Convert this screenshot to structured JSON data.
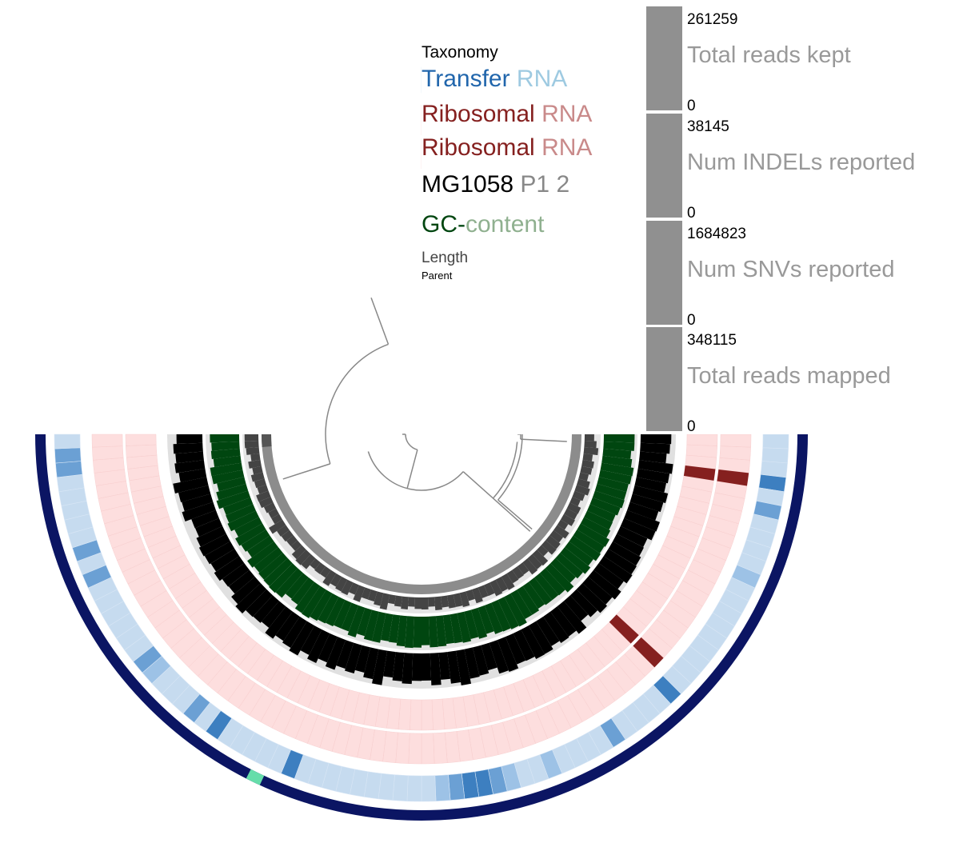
{
  "chart_data": {
    "type": "circular-phylogram",
    "layers": [
      {
        "label": "Taxonomy",
        "label_parts": [
          "Taxonomy"
        ],
        "color": "#0B1563",
        "highlight_color": "#66DDAA",
        "highlight_bins": [
          91
        ]
      },
      {
        "label": "Transfer RNA",
        "label_parts": [
          "Transfer",
          "RNA"
        ],
        "color": "#2166AC",
        "base_color": "#C6DBEF",
        "values": [
          0,
          0,
          0,
          0,
          0,
          0,
          0,
          0,
          0,
          0,
          0,
          0,
          0,
          0,
          0,
          0,
          0,
          0,
          0,
          0,
          0,
          0,
          0,
          0,
          0,
          0,
          0,
          0,
          0,
          0,
          0,
          0,
          0,
          0,
          0,
          0,
          0,
          0,
          0,
          0,
          0,
          0,
          0,
          0,
          0,
          0,
          0,
          0,
          0,
          0,
          0,
          0,
          0,
          0,
          0,
          0,
          0,
          0,
          0,
          0,
          0,
          0,
          0,
          0,
          0,
          0,
          0,
          0,
          0,
          0,
          0,
          0,
          0,
          0,
          0,
          0,
          0,
          0,
          0,
          0,
          0,
          0,
          0,
          0,
          0,
          0,
          0,
          0,
          0,
          0,
          0,
          0,
          0,
          0,
          0,
          0,
          0,
          0,
          0,
          0,
          0,
          0,
          0,
          0,
          0,
          0,
          0,
          0,
          0,
          0,
          0,
          0,
          0,
          0,
          0,
          0,
          0,
          0,
          0,
          0,
          0,
          0,
          0,
          0
        ]
      },
      {
        "label": "Ribosomal RNA",
        "label_parts": [
          "Ribosomal",
          "RNA"
        ],
        "color": "#7F1D1D",
        "base_color": "#FDDEDE"
      },
      {
        "label": "Ribosomal RNA",
        "label_parts": [
          "Ribosomal",
          "RNA"
        ],
        "color": "#7F1D1D",
        "base_color": "#FDDEDE"
      },
      {
        "label": "MG1058 P1 2",
        "label_parts": [
          "MG1058",
          "P1 2"
        ],
        "color": "#000000"
      },
      {
        "label": "GC-content",
        "label_parts": [
          "GC-",
          "content"
        ],
        "color": "#004610"
      },
      {
        "label": "Length",
        "label_parts": [
          "Length"
        ],
        "color": "#444444"
      },
      {
        "label": "Parent",
        "label_parts": [
          "Parent"
        ],
        "color": "#444444"
      }
    ],
    "bar_panels": [
      {
        "title": "Total reads kept",
        "max": "261259",
        "min": "0"
      },
      {
        "title": "Num INDELs reported",
        "max": "38145",
        "min": "0"
      },
      {
        "title": "Num SNVs reported",
        "max": "1684823",
        "min": "0"
      },
      {
        "title": "Total reads mapped",
        "max": "348115",
        "min": "0"
      }
    ],
    "bar_panel_color": "#909090",
    "angle_range_deg": [
      0,
      270
    ]
  }
}
